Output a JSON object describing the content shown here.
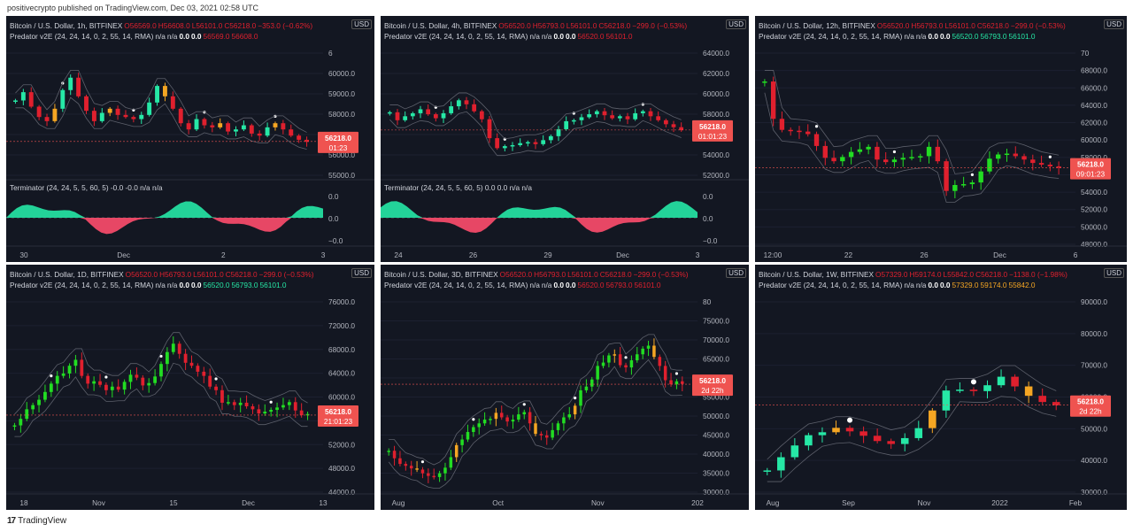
{
  "publish_line": "positivecrypto published on TradingView.com, Dec 03, 2021 02:58 UTC",
  "footer": {
    "logo": "17",
    "brand": "TradingView"
  },
  "colors": {
    "bg": "#131722",
    "up": "#26e8a6",
    "down": "#e0202e",
    "green": "#22dd22",
    "orange": "#f5a623",
    "price_tag": "#ef5350"
  },
  "chart_data": [
    {
      "type": "candlestick",
      "title": "Bitcoin / U.S. Dollar, 1h, BITFINEX",
      "ohlc": {
        "O": "O56569.0",
        "H": "H56608.0",
        "L": "L56101.0",
        "C": "C56218.0",
        "chg": "−353.0 (−0.62%)"
      },
      "indicator": {
        "name": "Predator v2E (24, 24, 14, 0, 2, 55, 14, RMA)",
        "vals": [
          "n/a",
          "n/a",
          "0.0",
          "0.0",
          "56569.0",
          "56608.0"
        ],
        "val_colors": [
          "#d1d4dc",
          "#d1d4dc",
          "#fff",
          "#fff",
          "#e0202e",
          "#e0202e"
        ]
      },
      "sub_indicator": {
        "name": "Terminator (24, 24, 5, 5, 60, 5)",
        "vals": [
          "-0.0",
          "-0.0",
          "n/a",
          "n/a"
        ],
        "yticks": [
          "0.0",
          "0.0",
          "−0.0"
        ]
      },
      "currency": "USD",
      "yticks": [
        "6",
        "60000.0",
        "59000.0",
        "58000.0",
        "57000.0",
        "56000.0",
        "55000.0"
      ],
      "xticks": [
        "30",
        "Dec",
        "2",
        "3"
      ],
      "last_price": "56218.0",
      "countdown": "01:23",
      "ylim": [
        54500,
        61000
      ],
      "trend": [
        58200,
        58600,
        57900,
        57400,
        57200,
        57800,
        58700,
        59300,
        58400,
        57700,
        57200,
        57600,
        57800,
        57500,
        57400,
        57300,
        57500,
        58100,
        58900,
        58400,
        57800,
        57100,
        56800,
        57300,
        57000,
        56900,
        57100,
        56700,
        56800,
        57000,
        56600,
        56500,
        56900,
        57100,
        56800,
        56500,
        56300,
        56200
      ]
    },
    {
      "type": "candlestick",
      "title": "Bitcoin / U.S. Dollar, 4h, BITFINEX",
      "ohlc": {
        "O": "O56520.0",
        "H": "H56793.0",
        "L": "L56101.0",
        "C": "C56218.0",
        "chg": "−299.0 (−0.53%)"
      },
      "indicator": {
        "name": "Predator v2E (24, 24, 14, 0, 2, 55, 14, RMA)",
        "vals": [
          "n/a",
          "n/a",
          "0.0",
          "0.0",
          "56520.0",
          "56101.0"
        ],
        "val_colors": [
          "#d1d4dc",
          "#d1d4dc",
          "#fff",
          "#fff",
          "#e0202e",
          "#e0202e"
        ]
      },
      "sub_indicator": {
        "name": "Terminator (24, 24, 5, 5, 60, 5)",
        "vals": [
          "0.0",
          "0.0",
          "n/a",
          "n/a"
        ],
        "yticks": [
          "0.0",
          "0.0",
          "−0.0"
        ]
      },
      "currency": "USD",
      "yticks": [
        "64000.0",
        "62000.0",
        "60000.0",
        "58000.0",
        "56000.0",
        "54000.0",
        "52000.0"
      ],
      "xticks": [
        "24",
        "26",
        "29",
        "Dec",
        "3"
      ],
      "last_price": "56218.0",
      "countdown": "01:01:23",
      "ylim": [
        51500,
        65000
      ],
      "trend": [
        58000,
        57200,
        57600,
        57900,
        58300,
        57800,
        57400,
        57900,
        58600,
        59200,
        58800,
        58100,
        57300,
        55400,
        54400,
        54600,
        54700,
        54900,
        55000,
        54800,
        55200,
        55600,
        56300,
        57100,
        57200,
        57500,
        57800,
        58100,
        57700,
        57400,
        57600,
        57300,
        57900,
        58100,
        57600,
        57200,
        56800,
        56500,
        56200
      ]
    },
    {
      "type": "candlestick",
      "title": "Bitcoin / U.S. Dollar, 12h, BITFINEX",
      "ohlc": {
        "O": "O56520.0",
        "H": "H56793.0",
        "L": "L56101.0",
        "C": "C56218.0",
        "chg": "−299.0 (−0.53%)"
      },
      "indicator": {
        "name": "Predator v2E (24, 24, 14, 0, 2, 55, 14, RMA)",
        "vals": [
          "n/a",
          "n/a",
          "0.0",
          "0.0",
          "56520.0",
          "56793.0",
          "56101.0"
        ],
        "val_colors": [
          "#d1d4dc",
          "#d1d4dc",
          "#fff",
          "#fff",
          "#26e8a6",
          "#26e8a6",
          "#26e8a6"
        ]
      },
      "currency": "USD",
      "yticks": [
        "70",
        "68000.0",
        "66000.0",
        "64000.0",
        "62000.0",
        "60000.0",
        "58000.0",
        "56000.0",
        "54000.0",
        "52000.0",
        "50000.0",
        "48000.0"
      ],
      "xticks": [
        "12:00",
        "22",
        "26",
        "Dec",
        "6"
      ],
      "last_price": "56218.0",
      "countdown": "09:01:23",
      "ylim": [
        47000,
        71000
      ],
      "trend": [
        66400,
        62000,
        60700,
        60600,
        60500,
        60200,
        58800,
        57400,
        57000,
        57500,
        58100,
        58400,
        58700,
        57200,
        56900,
        57200,
        57400,
        57500,
        57600,
        58700,
        57000,
        53500,
        54200,
        54300,
        54500,
        55800,
        57300,
        57800,
        57900,
        57600,
        57200,
        56800,
        56600,
        56400,
        56300
      ]
    },
    {
      "type": "candlestick",
      "title": "Bitcoin / U.S. Dollar, 1D, BITFINEX",
      "ohlc": {
        "O": "O56520.0",
        "H": "H56793.0",
        "L": "L56101.0",
        "C": "C56218.0",
        "chg": "−299.0 (−0.53%)"
      },
      "indicator": {
        "name": "Predator v2E (24, 24, 14, 0, 2, 55, 14, RMA)",
        "vals": [
          "n/a",
          "n/a",
          "0.0",
          "0.0",
          "56520.0",
          "56793.0",
          "56101.0"
        ],
        "val_colors": [
          "#d1d4dc",
          "#d1d4dc",
          "#fff",
          "#fff",
          "#26e8a6",
          "#26e8a6",
          "#26e8a6"
        ]
      },
      "currency": "USD",
      "yticks": [
        "76000.0",
        "72000.0",
        "68000.0",
        "64000.0",
        "60000.0",
        "56000.0",
        "52000.0",
        "48000.0",
        "44000.0"
      ],
      "xticks": [
        "18",
        "Nov",
        "15",
        "Dec",
        "13"
      ],
      "last_price": "56218.0",
      "countdown": "21:01:23",
      "ylim": [
        43000,
        77000
      ],
      "trend": [
        54500,
        55600,
        57200,
        57900,
        58800,
        60100,
        61500,
        62800,
        63200,
        64500,
        65500,
        62800,
        61500,
        61900,
        61300,
        60400,
        61000,
        60500,
        61800,
        63000,
        62500,
        61200,
        61600,
        62700,
        64800,
        66800,
        68200,
        66500,
        65000,
        64500,
        63500,
        62800,
        61000,
        60400,
        58300,
        58400,
        57900,
        58300,
        57700,
        57200,
        56500,
        56800,
        57100,
        57500,
        57900,
        58400,
        57000,
        56200,
        56400
      ]
    },
    {
      "type": "candlestick",
      "title": "Bitcoin / U.S. Dollar, 3D, BITFINEX",
      "ohlc": {
        "O": "O56520.0",
        "H": "H56793.0",
        "L": "L56101.0",
        "C": "C56218.0",
        "chg": "−299.0 (−0.53%)"
      },
      "indicator": {
        "name": "Predator v2E (24, 24, 14, 0, 2, 55, 14, RMA)",
        "vals": [
          "n/a",
          "n/a",
          "0.0",
          "0.0",
          "56520.0",
          "56793.0",
          "56101.0"
        ],
        "val_colors": [
          "#d1d4dc",
          "#d1d4dc",
          "#fff",
          "#fff",
          "#e0202e",
          "#e0202e",
          "#e0202e"
        ]
      },
      "currency": "USD",
      "yticks": [
        "80",
        "75000.0",
        "70000.0",
        "65000.0",
        "60000.0",
        "55000.0",
        "50000.0",
        "45000.0",
        "40000.0",
        "35000.0",
        "30000.0"
      ],
      "xticks": [
        "Aug",
        "Oct",
        "Nov",
        "202"
      ],
      "last_price": "56218.0",
      "countdown": "2d 22h",
      "ylim": [
        27000,
        81000
      ],
      "trend": [
        38500,
        36500,
        35000,
        34500,
        33800,
        33500,
        32500,
        31800,
        31500,
        32500,
        34000,
        36800,
        40000,
        41500,
        43500,
        44800,
        45800,
        46800,
        47000,
        48600,
        47400,
        46300,
        46800,
        48200,
        48800,
        45800,
        43000,
        42600,
        42000,
        44000,
        45800,
        47400,
        48200,
        50500,
        54600,
        55600,
        57500,
        61100,
        62000,
        63900,
        64200,
        61300,
        60700,
        62600,
        64200,
        65700,
        66500,
        63500,
        61100,
        57300,
        56200,
        57000,
        56300
      ]
    },
    {
      "type": "candlestick",
      "title": "Bitcoin / U.S. Dollar, 1W, BITFINEX",
      "ohlc": {
        "O": "O57329.0",
        "H": "H59174.0",
        "L": "L55842.0",
        "C": "C56218.0",
        "chg": "−1138.0 (−1.98%)"
      },
      "indicator": {
        "name": "Predator v2E (24, 24, 14, 0, 2, 55, 14, RMA)",
        "vals": [
          "n/a",
          "n/a",
          "0.0",
          "0.0",
          "57329.0",
          "59174.0",
          "55842.0"
        ],
        "val_colors": [
          "#d1d4dc",
          "#d1d4dc",
          "#fff",
          "#fff",
          "#f5a623",
          "#f5a623",
          "#f5a623"
        ]
      },
      "currency": "USD",
      "yticks": [
        "90000.0",
        "80000.0",
        "70000.0",
        "60000.0",
        "50000.0",
        "40000.0",
        "30000.0"
      ],
      "xticks": [
        "Aug",
        "Sep",
        "Nov",
        "2022",
        "Feb"
      ],
      "last_price": "56218.0",
      "countdown": "2d 22h",
      "ylim": [
        26000,
        95000
      ],
      "trend": [
        34000,
        38500,
        42500,
        46000,
        47000,
        48500,
        47300,
        45800,
        44000,
        43000,
        45000,
        48400,
        54400,
        61200,
        61500,
        61000,
        63000,
        65900,
        62600,
        59400,
        57300,
        56200
      ]
    }
  ]
}
